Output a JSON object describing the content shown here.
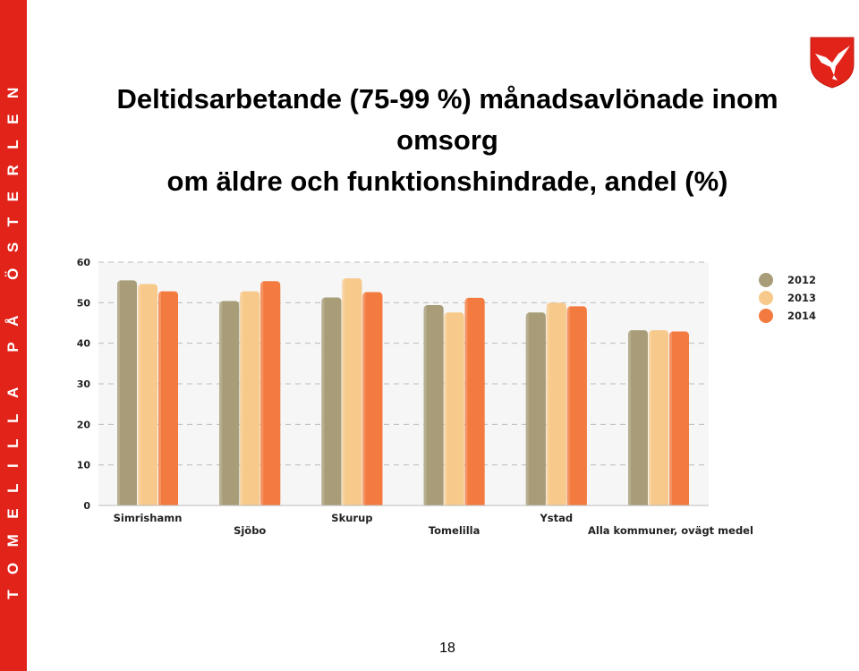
{
  "side_banner": {
    "text": "TOMELILLA PÅ ÖSTERLEN"
  },
  "slide": {
    "title_line1": "Deltidsarbetande (75-99 %) månadsavlönade inom omsorg",
    "title_line2": "om äldre och funktionshindrade, andel (%)",
    "page_number": "18"
  },
  "logo": {
    "name": "kite-coat-of-arms-icon",
    "color": "#e2231a"
  },
  "chart_data": {
    "type": "bar",
    "categories": [
      "Simrishamn",
      "Sjöbo",
      "Skurup",
      "Tomelilla",
      "Ystad",
      "Alla kommuner, ovägt medel"
    ],
    "series": [
      {
        "name": "2012",
        "color": "#a89d78",
        "values": [
          55.5,
          50.4,
          51.3,
          49.4,
          47.6,
          43.2
        ]
      },
      {
        "name": "2013",
        "color": "#f7c98a",
        "values": [
          54.6,
          52.8,
          56.0,
          47.6,
          50.0,
          43.2
        ]
      },
      {
        "name": "2014",
        "color": "#f37b3f",
        "values": [
          52.8,
          55.3,
          52.6,
          51.2,
          49.1,
          42.9
        ]
      }
    ],
    "ylim": [
      0,
      60
    ],
    "yticks": [
      0,
      10,
      20,
      30,
      40,
      50,
      60
    ],
    "grid": true,
    "legend_position": "right",
    "title": "",
    "xlabel": "",
    "ylabel": ""
  }
}
